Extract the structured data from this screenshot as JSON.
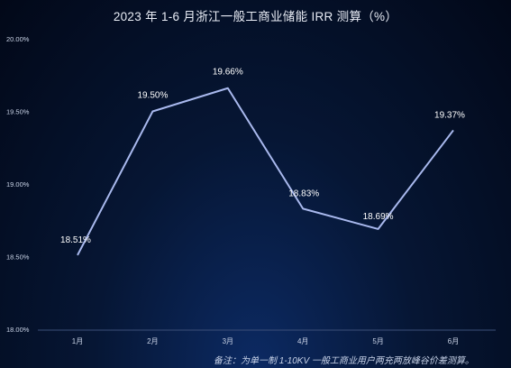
{
  "chart_data": {
    "type": "line",
    "title": "2023 年 1-6 月浙江一般工商业储能 IRR 测算（%）",
    "categories": [
      "1月",
      "2月",
      "3月",
      "4月",
      "5月",
      "6月"
    ],
    "series": [
      {
        "values": [
          18.51,
          19.5,
          19.66,
          18.83,
          18.69,
          19.37
        ],
        "labels": [
          "18.51%",
          "19.50%",
          "19.66%",
          "18.83%",
          "18.69%",
          "19.37%"
        ]
      }
    ],
    "yticks": [
      18.0,
      18.5,
      19.0,
      19.5,
      20.0
    ],
    "ytick_labels": [
      "18.00%",
      "18.50%",
      "19.00%",
      "19.50%",
      "20.00%"
    ],
    "ylim": [
      18.0,
      20.0
    ],
    "xlabel": "",
    "ylabel": "",
    "grid": false,
    "legend": "none",
    "note": "备注：为单一制 1-10KV 一般工商业用户两充两放峰谷价差测算。",
    "colors": {
      "line": "#a9b9ee",
      "text": "#ffffff",
      "axis_text": "#c9d3e6"
    }
  }
}
